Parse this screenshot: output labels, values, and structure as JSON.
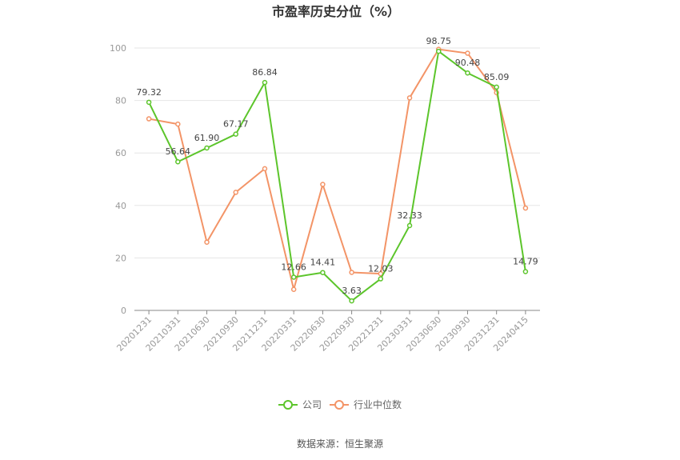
{
  "chart_data": {
    "type": "line",
    "title": "市盈率历史分位（%）",
    "categories": [
      "20201231",
      "20210331",
      "20210630",
      "20210930",
      "20211231",
      "20220331",
      "20220630",
      "20220930",
      "20221231",
      "20230331",
      "20230630",
      "20230930",
      "20231231",
      "20240415"
    ],
    "ylim": [
      0,
      100
    ],
    "yticks": [
      0,
      20,
      40,
      60,
      80,
      100
    ],
    "grid": true,
    "legend_position": "bottom",
    "series": [
      {
        "name": "公司",
        "color": "#5cc52b",
        "values": [
          79.32,
          56.64,
          61.9,
          67.17,
          86.84,
          12.66,
          14.41,
          3.63,
          12.03,
          32.33,
          98.75,
          90.48,
          85.09,
          14.79
        ],
        "labels": [
          "79.32",
          "56.64",
          "61.90",
          "67.17",
          "86.84",
          "12.66",
          "14.41",
          "3.63",
          "12.03",
          "32.33",
          "98.75",
          "90.48",
          "85.09",
          "14.79"
        ]
      },
      {
        "name": "行业中位数",
        "color": "#f39467",
        "values": [
          73,
          71,
          26,
          45,
          54,
          8,
          48,
          14.5,
          14,
          81,
          99.5,
          98,
          83,
          39
        ]
      }
    ]
  },
  "source": "数据来源：恒生聚源"
}
